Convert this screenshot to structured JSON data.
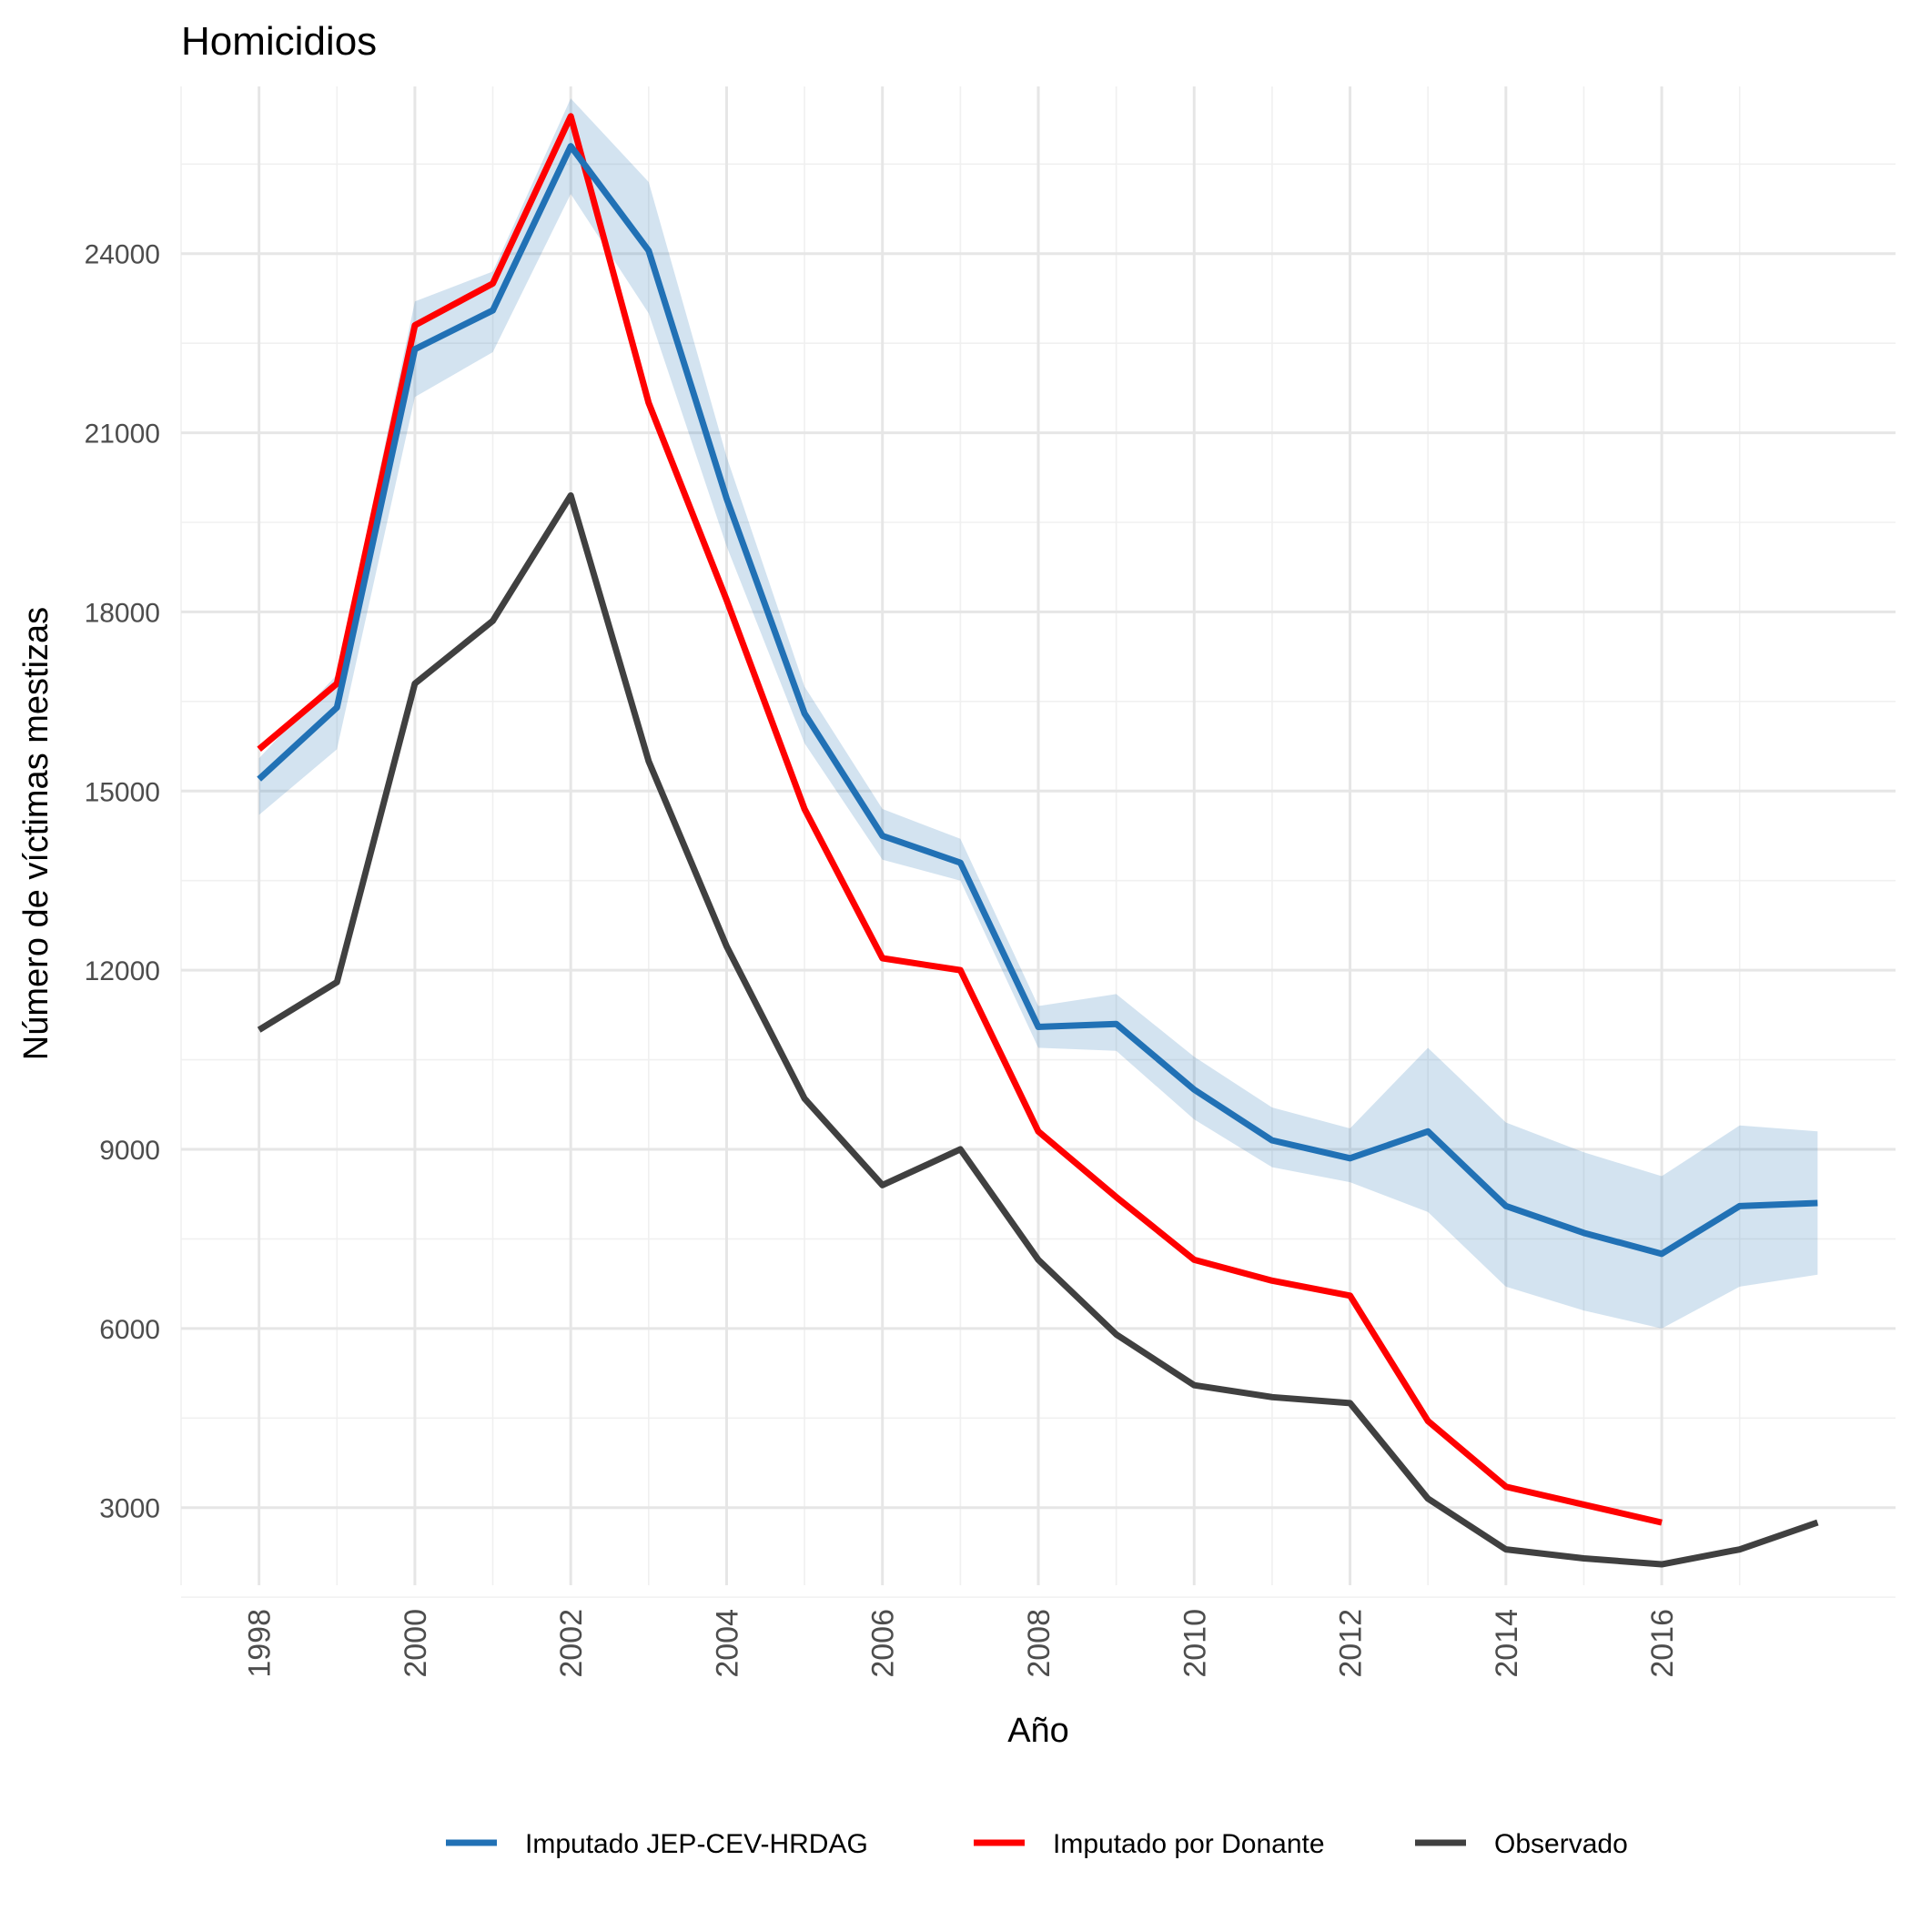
{
  "chart_data": {
    "type": "line",
    "title": "Homicidios",
    "xlabel": "Año",
    "ylabel": "Número de víctimas mestizas",
    "xlim": [
      1997,
      2019
    ],
    "ylim": [
      1700,
      26800
    ],
    "x_ticks": [
      1998,
      2000,
      2002,
      2004,
      2006,
      2008,
      2010,
      2012,
      2014,
      2016
    ],
    "x_tick_labels": [
      "1998",
      "2000",
      "2002",
      "2004",
      "2006",
      "2008",
      "2010",
      "2012",
      "2014",
      "2016"
    ],
    "y_ticks": [
      3000,
      6000,
      9000,
      12000,
      15000,
      18000,
      21000,
      24000
    ],
    "y_tick_labels": [
      "3000",
      "6000",
      "9000",
      "12000",
      "15000",
      "18000",
      "21000",
      "24000"
    ],
    "y_minor_ticks": [
      1500,
      4500,
      7500,
      10500,
      13500,
      16500,
      19500,
      22500,
      25500
    ],
    "x_minor_ticks": [
      1997,
      1999,
      2001,
      2003,
      2005,
      2007,
      2009,
      2011,
      2013,
      2015,
      2017
    ],
    "grid": true,
    "legend_position": "bottom",
    "series": [
      {
        "name": "Imputado JEP-CEV-HRDAG",
        "color": "#2171b5",
        "x": [
          1998,
          1999,
          2000,
          2001,
          2002,
          2003,
          2004,
          2005,
          2006,
          2007,
          2008,
          2009,
          2010,
          2011,
          2012,
          2013,
          2014,
          2015,
          2016,
          2017,
          2018
        ],
        "values": [
          15200,
          16400,
          22400,
          23050,
          25800,
          24050,
          19900,
          16300,
          14250,
          13800,
          11050,
          11100,
          10000,
          9150,
          8850,
          9300,
          8050,
          7600,
          7250,
          8050,
          8100
        ],
        "band_lower": [
          14600,
          15700,
          21600,
          22350,
          25000,
          23000,
          19100,
          15800,
          13850,
          13500,
          10700,
          10650,
          9500,
          8700,
          8450,
          7950,
          6700,
          6300,
          6000,
          6700,
          6900
        ],
        "band_upper": [
          15550,
          16950,
          23200,
          23700,
          26600,
          25200,
          20600,
          16750,
          14700,
          14200,
          11400,
          11600,
          10550,
          9700,
          9350,
          10700,
          9450,
          8950,
          8550,
          9400,
          9300
        ]
      },
      {
        "name": "Imputado por Donante",
        "color": "#ff0000",
        "x": [
          1998,
          1999,
          2000,
          2001,
          2002,
          2003,
          2004,
          2005,
          2006,
          2007,
          2008,
          2009,
          2010,
          2011,
          2012,
          2013,
          2014,
          2015,
          2016
        ],
        "values": [
          15700,
          16800,
          22800,
          23500,
          26300,
          21500,
          18200,
          14700,
          12200,
          12000,
          9300,
          8200,
          7150,
          6800,
          6550,
          4450,
          3350,
          3050,
          2750
        ]
      },
      {
        "name": "Observado",
        "color": "#404040",
        "x": [
          1998,
          1999,
          2000,
          2001,
          2002,
          2003,
          2004,
          2005,
          2006,
          2007,
          2008,
          2009,
          2010,
          2011,
          2012,
          2013,
          2014,
          2015,
          2016,
          2017,
          2018
        ],
        "values": [
          11000,
          11800,
          16800,
          17850,
          19950,
          15500,
          12400,
          9850,
          8400,
          9000,
          7150,
          5900,
          5050,
          4850,
          4750,
          3150,
          2300,
          2150,
          2050,
          2300,
          2750
        ]
      }
    ]
  }
}
